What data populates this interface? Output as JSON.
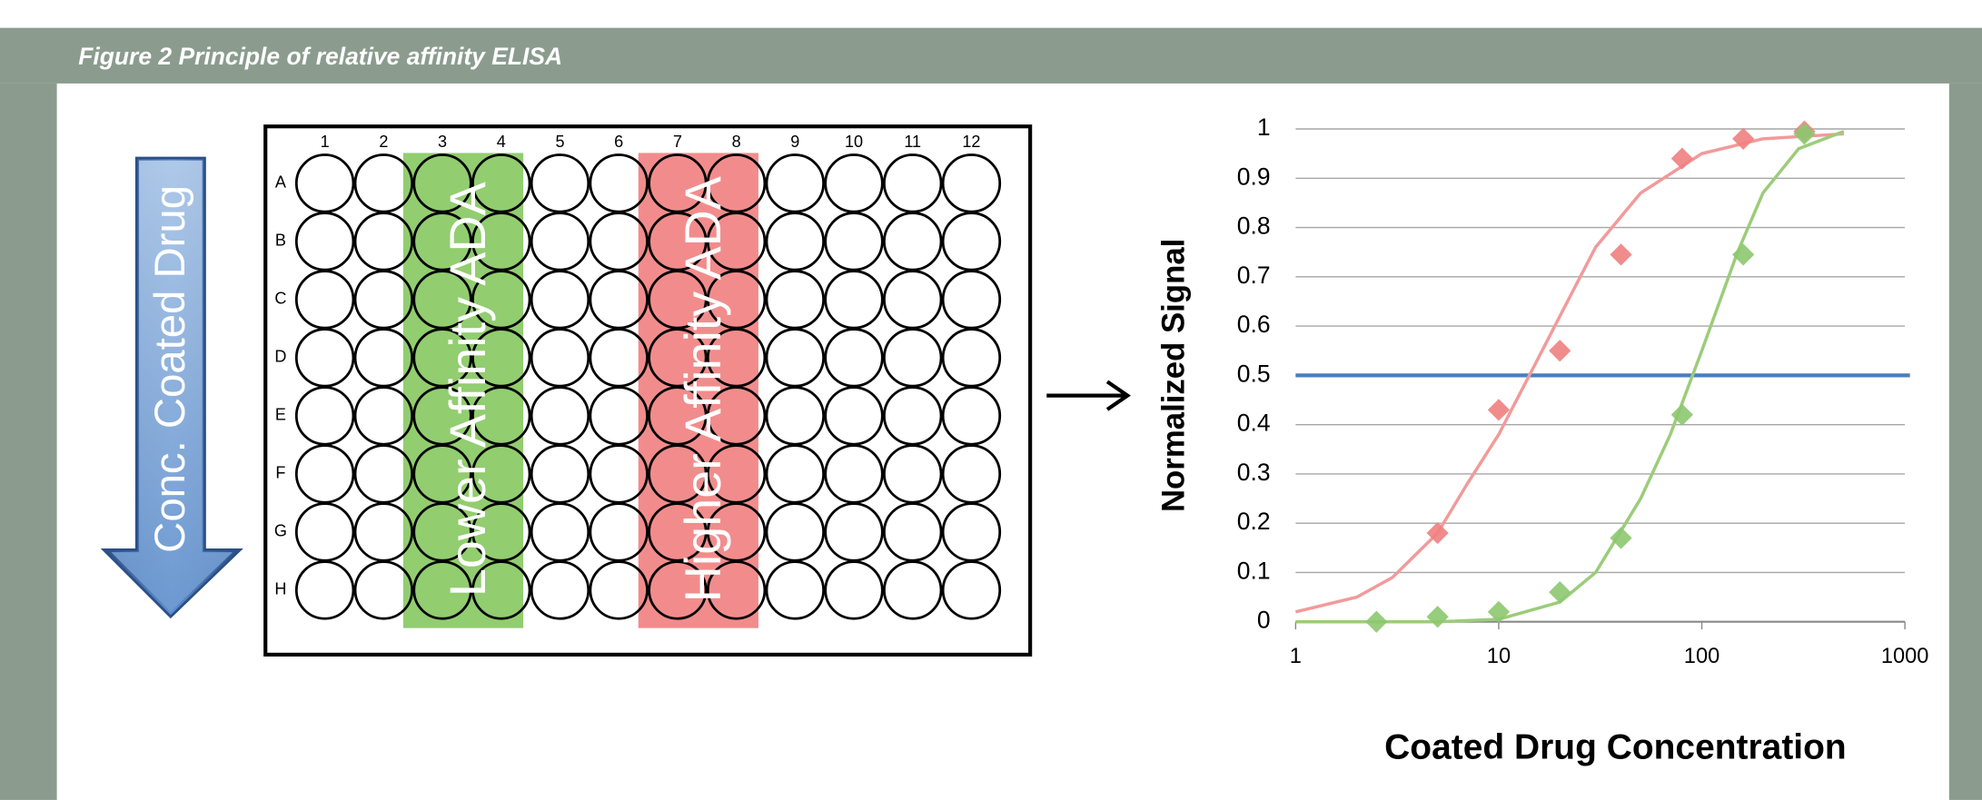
{
  "header": {
    "title": "Figure 2 Principle of relative affinity ELISA"
  },
  "arrow_label": "Conc. Coated Drug",
  "plate": {
    "columns": [
      "1",
      "2",
      "3",
      "4",
      "5",
      "6",
      "7",
      "8",
      "9",
      "10",
      "11",
      "12"
    ],
    "rows": [
      "A",
      "B",
      "C",
      "D",
      "E",
      "F",
      "G",
      "H"
    ],
    "bands": [
      {
        "label": "Lower Affinity ADA",
        "color": "#92cd70"
      },
      {
        "label": "Higher Affinity ADA",
        "color": "#f28c8c"
      }
    ]
  },
  "chart_data": {
    "type": "scatter",
    "x_scale": "log",
    "grid": true,
    "ylabel": "Normalized Signal",
    "xlabel": "Coated Drug Concentration",
    "xlim": [
      1,
      1000
    ],
    "xticks": [
      1,
      10,
      100,
      1000
    ],
    "ylim": [
      0,
      1
    ],
    "yticks": [
      0,
      0.1,
      0.2,
      0.3,
      0.4,
      0.5,
      0.6,
      0.7,
      0.8,
      0.9,
      1
    ],
    "reference_line": {
      "value": 0.5,
      "color": "#4a7ebb"
    },
    "series": [
      {
        "color": "#f08080",
        "x": [
          5,
          10,
          20,
          40,
          80,
          160,
          320
        ],
        "values": [
          0.18,
          0.43,
          0.55,
          0.745,
          0.94,
          0.98,
          0.995
        ],
        "fit": {
          "color": "#f29a9a",
          "x": [
            1,
            2,
            3,
            5,
            7,
            10,
            15,
            20,
            30,
            50,
            100,
            200,
            500
          ],
          "values": [
            0.02,
            0.05,
            0.09,
            0.18,
            0.28,
            0.38,
            0.52,
            0.62,
            0.76,
            0.87,
            0.95,
            0.98,
            0.99
          ]
        }
      },
      {
        "color": "#8cc870",
        "x": [
          2.5,
          5,
          10,
          20,
          40,
          80,
          160,
          320
        ],
        "values": [
          0,
          0.01,
          0.02,
          0.06,
          0.17,
          0.42,
          0.745,
          0.99
        ],
        "fit": {
          "color": "#9ccc7a",
          "x": [
            1,
            5,
            10,
            20,
            30,
            50,
            70,
            100,
            150,
            200,
            300,
            500
          ],
          "values": [
            0,
            0,
            0.005,
            0.04,
            0.1,
            0.25,
            0.38,
            0.55,
            0.75,
            0.87,
            0.96,
            0.995
          ]
        }
      }
    ]
  }
}
